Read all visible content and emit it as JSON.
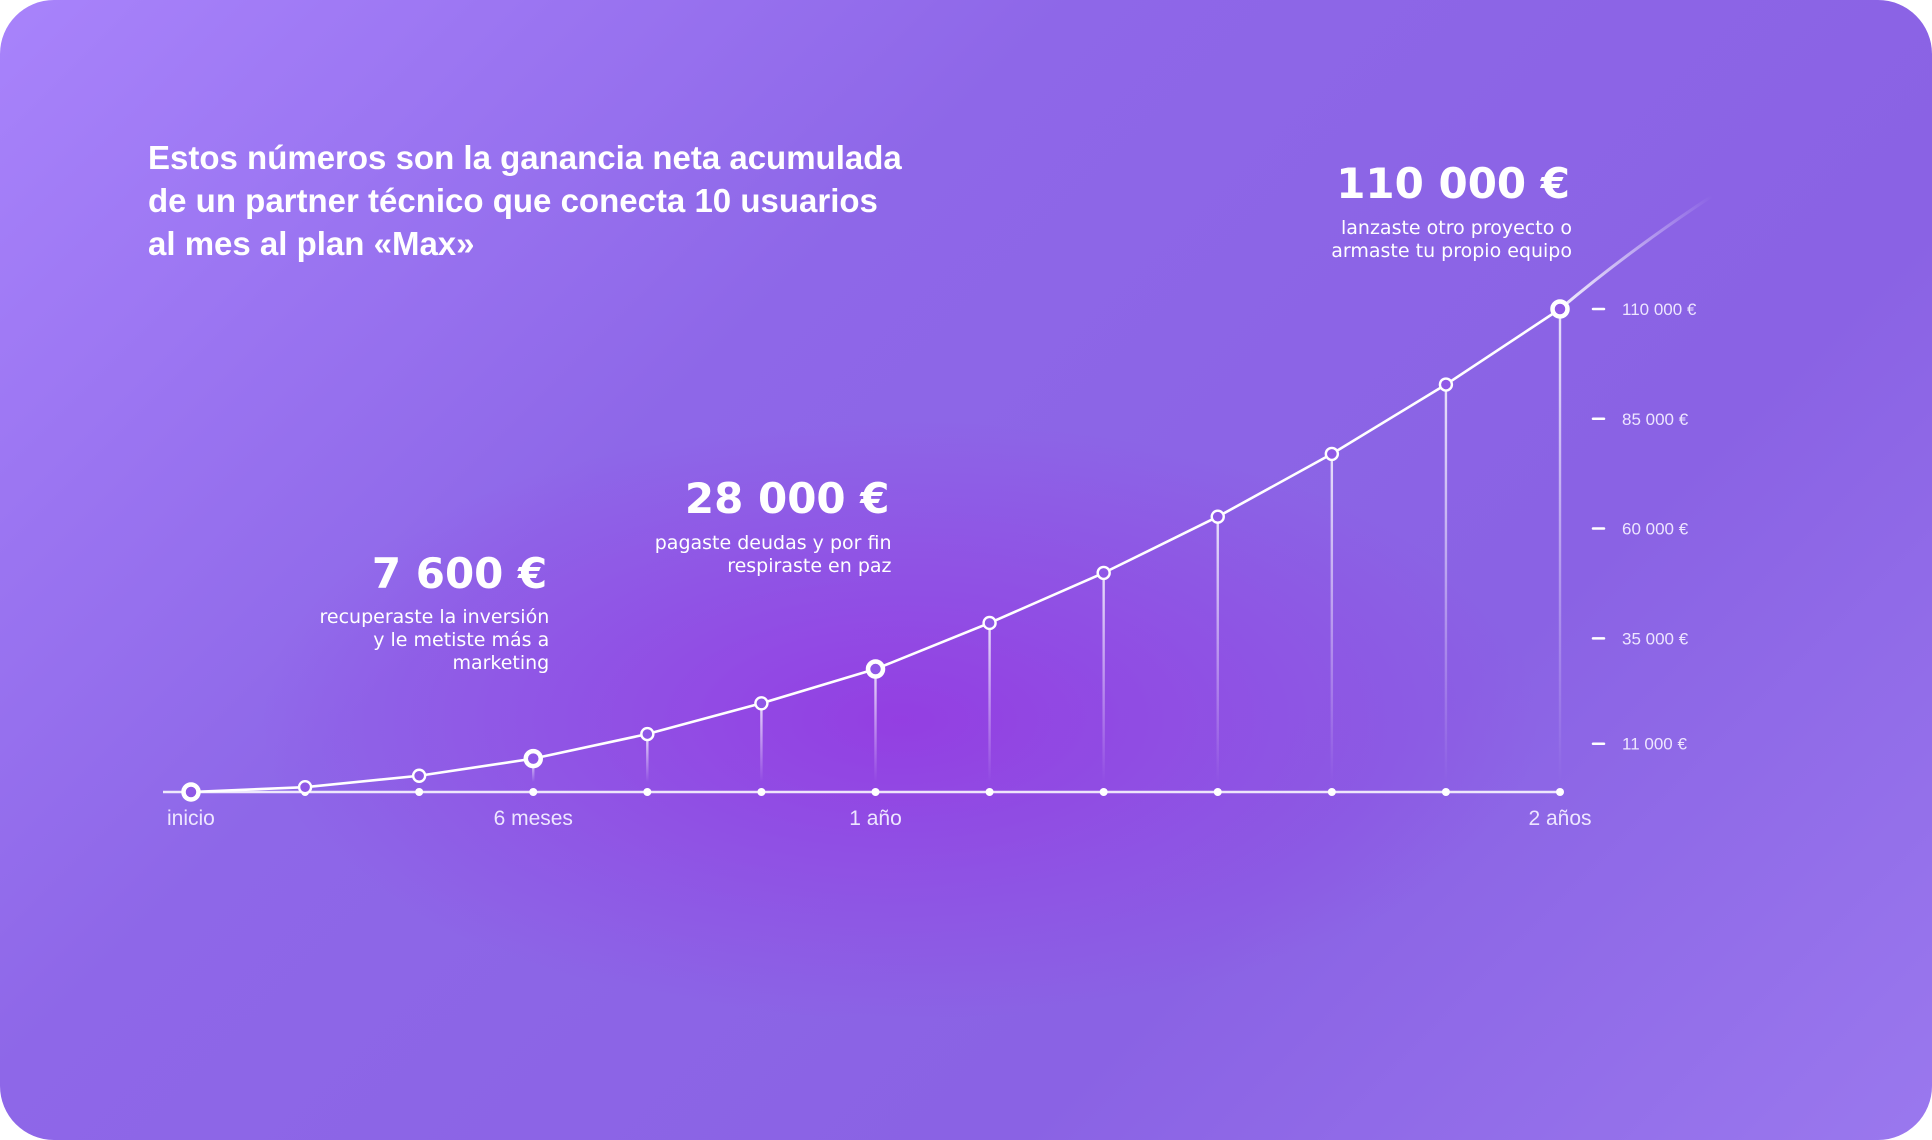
{
  "chart_data": {
    "type": "line",
    "title": "Estos números son la ganancia neta acumulada\nde un partner técnico que conecta 10 usuarios\nal mes al plan «Max»",
    "categories": [
      "inicio",
      null,
      null,
      "6 meses",
      null,
      null,
      "1 año",
      null,
      null,
      null,
      null,
      null,
      "2 años"
    ],
    "series": [
      {
        "name": "ganancia neta acumulada",
        "color": "#ffffff",
        "values": [
          0,
          1100,
          3700,
          7600,
          13200,
          20200,
          28000,
          38500,
          49900,
          62700,
          77000,
          92800,
          110000
        ],
        "value_labels": [
          null,
          null,
          null,
          "7 600 €",
          null,
          null,
          "28 000 €",
          null,
          null,
          null,
          null,
          null,
          "110 000 €"
        ],
        "annotations": [
          null,
          null,
          null,
          "recuperaste la inversión\ny le metiste más a\nmarketing",
          null,
          null,
          "pagaste deudas y por fin\nrespiraste en paz",
          null,
          null,
          null,
          null,
          null,
          "lanzaste otro proyecto o\narmaste tu propio equipo"
        ]
      }
    ],
    "ylim": [
      0,
      110000
    ],
    "yticks": [
      {
        "value": 11000,
        "label": "11 000 €"
      },
      {
        "value": 35000,
        "label": "35 000 €"
      },
      {
        "value": 60000,
        "label": "60 000 €"
      },
      {
        "value": 85000,
        "label": "85 000 €"
      },
      {
        "value": 110000,
        "label": "110 000 €"
      }
    ]
  }
}
